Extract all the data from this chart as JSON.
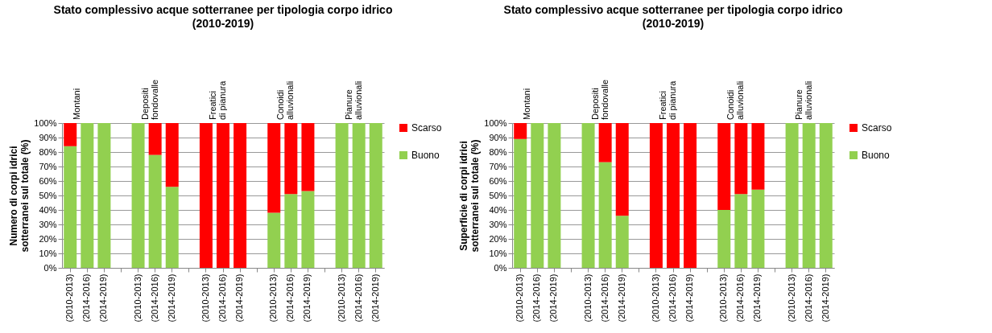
{
  "chart_data": [
    {
      "type": "bar",
      "stacked": true,
      "title": "Stato complessivo acque sotterranee per tipologia corpo idrico",
      "subtitle": "(2010-2019)",
      "ylabel": "Numero di corpi idrici sotterranei sul totale (%)",
      "categories": [
        "(2010-2013)",
        "(2014-2016)",
        "(2014-2019)",
        null,
        "(2010-2013)",
        "(2014-2016)",
        "(2014-2019)",
        null,
        "(2010-2013)",
        "(2014-2016)",
        "(2014-2019)",
        null,
        "(2010-2013)",
        "(2014-2016)",
        "(2014-2019)",
        null,
        "(2010-2013)",
        "(2014-2016)",
        "(2014-2019)"
      ],
      "series": [
        {
          "name": "Buono",
          "color": "#92d050",
          "values": [
            84,
            100,
            100,
            null,
            100,
            78,
            56,
            null,
            0,
            0,
            0,
            null,
            38,
            51,
            53,
            null,
            100,
            100,
            100
          ]
        },
        {
          "name": "Scarso",
          "color": "#ff0000",
          "values": [
            16,
            0,
            0,
            null,
            0,
            22,
            44,
            null,
            100,
            100,
            100,
            null,
            62,
            49,
            47,
            null,
            0,
            0,
            0
          ]
        }
      ],
      "annotations": [
        "Montani",
        "Depositi fondovalle",
        "Freatici di pianura",
        "Conoidi alluvionali",
        "Pianure alluvionali"
      ],
      "ylim": [
        0,
        100
      ],
      "yticks": [
        {
          "value": 0,
          "label": "0%"
        },
        {
          "value": 10,
          "label": "10%"
        },
        {
          "value": 20,
          "label": "20%"
        },
        {
          "value": 30,
          "label": "30%"
        },
        {
          "value": 40,
          "label": "40%"
        },
        {
          "value": 50,
          "label": "50%"
        },
        {
          "value": 60,
          "label": "60%"
        },
        {
          "value": 70,
          "label": "70%"
        },
        {
          "value": 80,
          "label": "80%"
        },
        {
          "value": 90,
          "label": "90%"
        },
        {
          "value": 100,
          "label": "100%"
        }
      ],
      "grid": "y",
      "legend": "right"
    },
    {
      "type": "bar",
      "stacked": true,
      "title": "Stato complessivo acque sotterranee per tipologia corpo idrico",
      "subtitle": "(2010-2019)",
      "ylabel": "Superficie di corpi idrici sotterranei sul totale (%)",
      "categories": [
        "(2010-2013)",
        "(2014-2016)",
        "(2014-2019)",
        null,
        "(2010-2013)",
        "(2014-2016)",
        "(2014-2019)",
        null,
        "(2010-2013)",
        "(2014-2016)",
        "(2014-2019)",
        null,
        "(2010-2013)",
        "(2014-2016)",
        "(2014-2019)",
        null,
        "(2010-2013)",
        "(2014-2016)",
        "(2014-2019)"
      ],
      "series": [
        {
          "name": "Buono",
          "color": "#92d050",
          "values": [
            89,
            100,
            100,
            null,
            100,
            73,
            36,
            null,
            0,
            0,
            0,
            null,
            40,
            51,
            54,
            null,
            100,
            100,
            100
          ]
        },
        {
          "name": "Scarso",
          "color": "#ff0000",
          "values": [
            11,
            0,
            0,
            null,
            0,
            27,
            64,
            null,
            100,
            100,
            100,
            null,
            60,
            49,
            46,
            null,
            0,
            0,
            0
          ]
        }
      ],
      "annotations": [
        "Montani",
        "Depositi fondovalle",
        "Freatici di pianura",
        "Conoidi alluvionali",
        "Pianure alluvionali"
      ],
      "ylim": [
        0,
        100
      ],
      "yticks": [
        {
          "value": 0,
          "label": "0%"
        },
        {
          "value": 10,
          "label": "10%"
        },
        {
          "value": 20,
          "label": "20%"
        },
        {
          "value": 30,
          "label": "30%"
        },
        {
          "value": 40,
          "label": "40%"
        },
        {
          "value": 50,
          "label": "50%"
        },
        {
          "value": 60,
          "label": "60%"
        },
        {
          "value": 70,
          "label": "70%"
        },
        {
          "value": 80,
          "label": "80%"
        },
        {
          "value": 90,
          "label": "90%"
        },
        {
          "value": 100,
          "label": "100%"
        }
      ],
      "grid": "y",
      "legend": "right"
    }
  ]
}
